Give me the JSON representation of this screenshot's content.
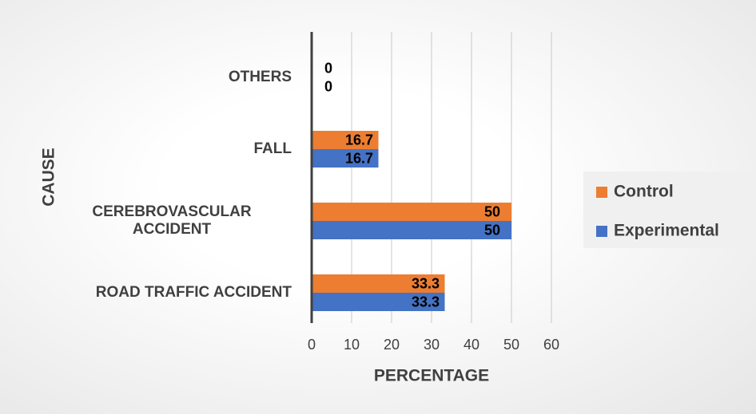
{
  "chart_data": {
    "type": "bar",
    "orientation": "horizontal",
    "categories": [
      "ROAD TRAFFIC ACCIDENT",
      "CEREBROVASCULAR ACCIDENT",
      "FALL",
      "OTHERS"
    ],
    "series": [
      {
        "name": "Experimental",
        "color": "#4472c4",
        "values": [
          33.3,
          50,
          16.7,
          0
        ]
      },
      {
        "name": "Control",
        "color": "#ed7d31",
        "values": [
          33.3,
          50,
          16.7,
          0
        ]
      }
    ],
    "xlabel": "PERCENTAGE",
    "ylabel": "CAUSE",
    "xlim": [
      0,
      60
    ],
    "xticks": [
      0,
      10,
      20,
      30,
      40,
      50,
      60
    ],
    "grid": true,
    "legend": "right"
  }
}
